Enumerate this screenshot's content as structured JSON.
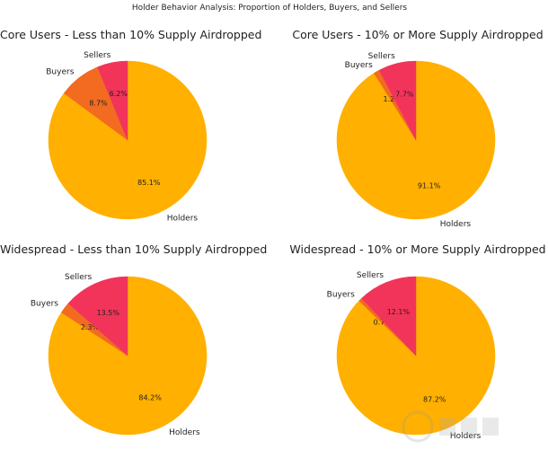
{
  "title": "Holder Behavior Analysis: Proportion of Holders, Buyers, and Sellers",
  "colors": {
    "Holders": "#ffb000",
    "Buyers": "#f26b21",
    "Sellers": "#f2345a"
  },
  "chart_data": [
    {
      "type": "pie",
      "title": "Core Users - Less than 10% Supply Airdropped",
      "labels": [
        "Holders",
        "Buyers",
        "Sellers"
      ],
      "values": [
        85.1,
        8.7,
        6.2
      ],
      "value_labels": [
        "85.1%",
        "8.7%",
        "6.2%"
      ],
      "start_angle": 90,
      "direction": "clockwise"
    },
    {
      "type": "pie",
      "title": "Core Users - 10% or More Supply Airdropped",
      "labels": [
        "Holders",
        "Buyers",
        "Sellers"
      ],
      "values": [
        91.1,
        1.2,
        7.7
      ],
      "value_labels": [
        "91.1%",
        "1.2%",
        "7.7%"
      ],
      "start_angle": 90,
      "direction": "clockwise"
    },
    {
      "type": "pie",
      "title": "Widespread - Less than 10% Supply Airdropped",
      "labels": [
        "Holders",
        "Buyers",
        "Sellers"
      ],
      "values": [
        84.2,
        2.3,
        13.5
      ],
      "value_labels": [
        "84.2%",
        "2.3%",
        "13.5%"
      ],
      "start_angle": 90,
      "direction": "clockwise"
    },
    {
      "type": "pie",
      "title": "Widespread - 10% or More Supply Airdropped",
      "labels": [
        "Holders",
        "Buyers",
        "Sellers"
      ],
      "values": [
        87.2,
        0.7,
        12.1
      ],
      "value_labels": [
        "87.2%",
        "0.7%",
        "12.1%"
      ],
      "start_angle": 90,
      "direction": "clockwise"
    }
  ]
}
